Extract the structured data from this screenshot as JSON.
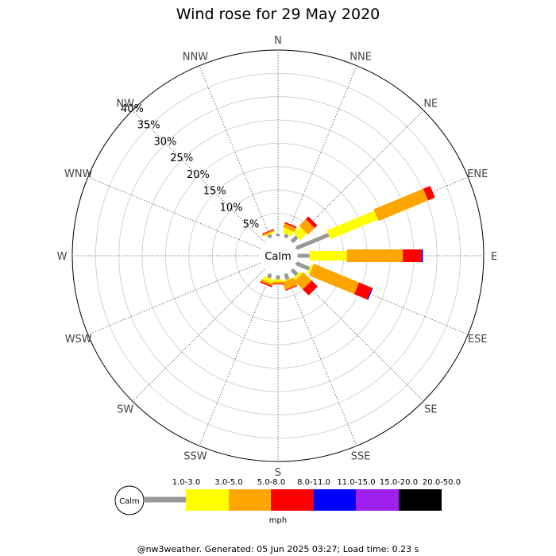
{
  "chart_data": {
    "type": "wind_rose",
    "title": "Wind rose for 29 May 2020",
    "directions": [
      "N",
      "NNE",
      "NE",
      "ENE",
      "E",
      "ESE",
      "SE",
      "SSE",
      "S",
      "SSW",
      "SW",
      "WSW",
      "W",
      "WNW",
      "NW",
      "NNW"
    ],
    "ring_labels": [
      "5%",
      "10%",
      "15%",
      "20%",
      "25%",
      "30%",
      "35%",
      "40%"
    ],
    "rlim": [
      0,
      40
    ],
    "center_label": "Calm",
    "speed_bins": [
      {
        "label": "1.0-3.0",
        "color": "#999999"
      },
      {
        "label": "3.0-5.0",
        "color": "#ffff00"
      },
      {
        "label": "5.0-8.0",
        "color": "#ffa500"
      },
      {
        "label": "8.0-11.0",
        "color": "#ff0000"
      },
      {
        "label": "11.0-15.0",
        "color": "#0000ff"
      },
      {
        "label": "15.0-20.0",
        "color": "#a020f0"
      },
      {
        "label": "20.0-50.0",
        "color": "#000000"
      }
    ],
    "unit_label": "mph",
    "series": [
      {
        "direction": "N",
        "values": [
          0.4,
          0,
          0,
          0,
          0,
          0,
          0
        ]
      },
      {
        "direction": "NNE",
        "values": [
          0.7,
          1.1,
          0.9,
          0.3,
          0,
          0,
          0
        ]
      },
      {
        "direction": "NE",
        "values": [
          1.5,
          2.0,
          2.0,
          0.8,
          0,
          0,
          0
        ]
      },
      {
        "direction": "ENE",
        "values": [
          7.5,
          11.0,
          11.5,
          1.6,
          0,
          0,
          0
        ]
      },
      {
        "direction": "E",
        "values": [
          2.5,
          8.0,
          12.0,
          4.0,
          0.3,
          0,
          0
        ]
      },
      {
        "direction": "ESE",
        "values": [
          3.0,
          0.5,
          10.5,
          3.0,
          0.2,
          0,
          0
        ]
      },
      {
        "direction": "SE",
        "values": [
          1.5,
          0.6,
          2.5,
          1.8,
          0,
          0,
          0
        ]
      },
      {
        "direction": "SSE",
        "values": [
          1.2,
          0.2,
          1.7,
          0.2,
          0,
          0,
          0
        ]
      },
      {
        "direction": "S",
        "values": [
          0.8,
          0.5,
          0.4,
          0.2,
          0,
          0,
          0
        ]
      },
      {
        "direction": "SSW",
        "values": [
          0.9,
          0.8,
          0.5,
          0.3,
          0,
          0,
          0
        ]
      },
      {
        "direction": "SW",
        "values": [
          0,
          0,
          0,
          0,
          0,
          0,
          0
        ]
      },
      {
        "direction": "WSW",
        "values": [
          0,
          0,
          0,
          0,
          0,
          0,
          0
        ]
      },
      {
        "direction": "W",
        "values": [
          0,
          0,
          0,
          0,
          0,
          0,
          0
        ]
      },
      {
        "direction": "WNW",
        "values": [
          0,
          0,
          0,
          0,
          0,
          0,
          0
        ]
      },
      {
        "direction": "NW",
        "values": [
          0,
          0,
          0,
          0,
          0,
          0,
          0
        ]
      },
      {
        "direction": "NNW",
        "values": [
          0.6,
          0.3,
          0.3,
          0.2,
          0,
          0,
          0
        ]
      }
    ]
  },
  "footer": "@nw3weather. Generated: 05 Jun 2025 03:27; Load time: 0.23 s"
}
